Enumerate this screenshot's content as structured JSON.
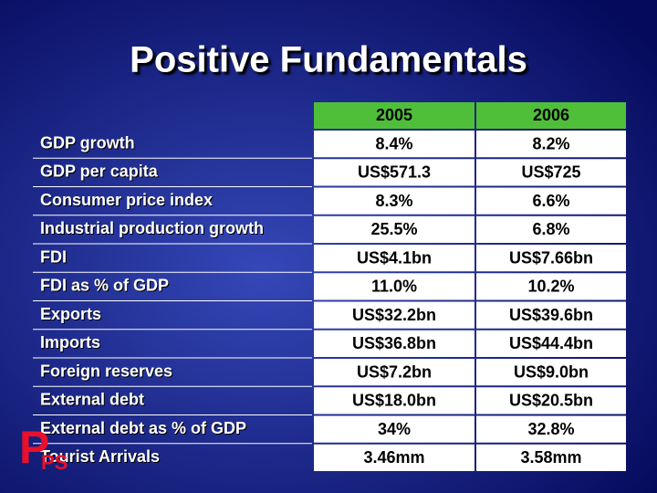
{
  "header": {
    "title": "Positive Fundamentals"
  },
  "table": {
    "columns": [
      "2005",
      "2006"
    ],
    "rows": [
      [
        "GDP growth",
        "8.4%",
        "8.2%"
      ],
      [
        "GDP per capita",
        "US$571.3",
        "US$725"
      ],
      [
        "Consumer price index",
        "8.3%",
        "6.6%"
      ],
      [
        "Industrial production growth",
        "25.5%",
        "6.8%"
      ],
      [
        "FDI",
        "US$4.1bn",
        "US$7.66bn"
      ],
      [
        "FDI as % of GDP",
        "11.0%",
        "10.2%"
      ],
      [
        "Exports",
        "US$32.2bn",
        "US$39.6bn"
      ],
      [
        "Imports",
        "US$36.8bn",
        "US$44.4bn"
      ],
      [
        "Foreign reserves",
        "US$7.2bn",
        "US$9.0bn"
      ],
      [
        "External debt",
        "US$18.0bn",
        "US$20.5bn"
      ],
      [
        "External debt as % of GDP",
        "34%",
        "32.8%"
      ],
      [
        "Tourist Arrivals",
        "3.46mm",
        "3.58mm"
      ]
    ]
  },
  "logo": {
    "big": "P",
    "small": "PS"
  }
}
